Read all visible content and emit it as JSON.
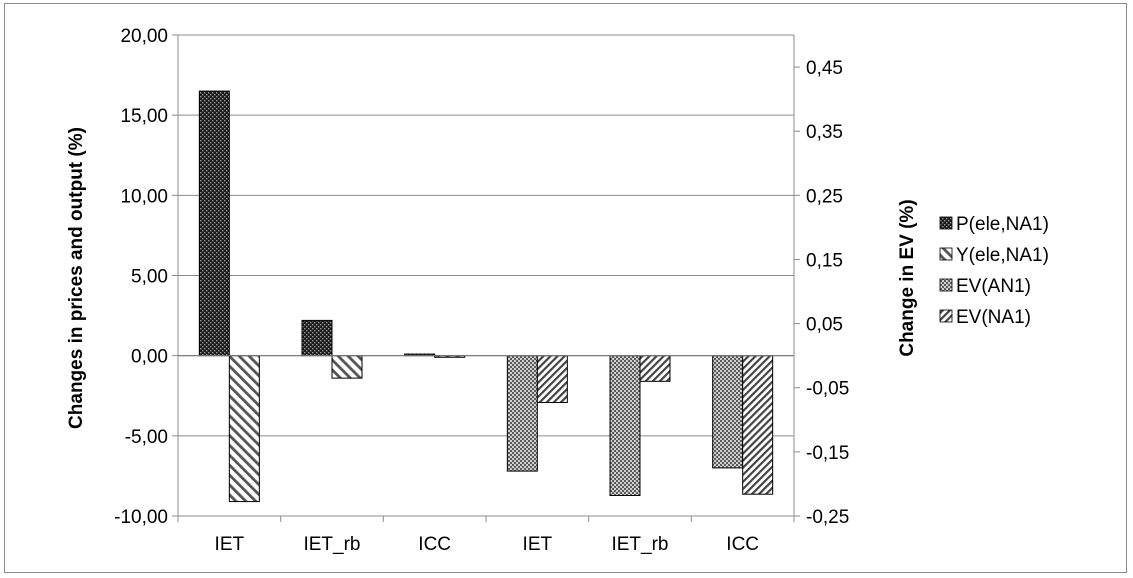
{
  "chart_data": {
    "type": "bar",
    "categories": [
      "IET",
      "IET_rb",
      "ICC",
      "IET",
      "IET_rb",
      "ICC"
    ],
    "left_axis": {
      "label": "Changes in prices and output (%)",
      "ylim": [
        -10,
        20
      ],
      "ticks": [
        "-10,00",
        "-5,00",
        "0,00",
        "5,00",
        "10,00",
        "15,00",
        "20,00"
      ],
      "tick_values": [
        -10,
        -5,
        0,
        5,
        10,
        15,
        20
      ]
    },
    "right_axis": {
      "label": "Change in EV (%)",
      "ylim": [
        -0.25,
        0.5
      ],
      "ticks": [
        "-0,25",
        "-0,15",
        "-0,05",
        "0,05",
        "0,15",
        "0,25",
        "0,35",
        "0,45"
      ],
      "tick_values": [
        -0.25,
        -0.15,
        -0.05,
        0.05,
        0.15,
        0.25,
        0.35,
        0.45
      ]
    },
    "series": [
      {
        "name": "P(ele,NA1)",
        "axis": "left",
        "pattern": "dark-dots",
        "values": [
          16.5,
          2.2,
          0.1,
          null,
          null,
          null
        ]
      },
      {
        "name": "Y(ele,NA1)",
        "axis": "left",
        "pattern": "wide-diagonal",
        "values": [
          -9.1,
          -1.4,
          -0.1,
          null,
          null,
          null
        ]
      },
      {
        "name": "EV(AN1)",
        "axis": "right",
        "pattern": "grey-checker",
        "values": [
          null,
          null,
          null,
          -0.18,
          -0.218,
          -0.175
        ]
      },
      {
        "name": "EV(NA1)",
        "axis": "right",
        "pattern": "dense-diagonal",
        "values": [
          null,
          null,
          null,
          -0.073,
          -0.04,
          -0.216
        ]
      }
    ],
    "grid": true,
    "legend_position": "right"
  }
}
